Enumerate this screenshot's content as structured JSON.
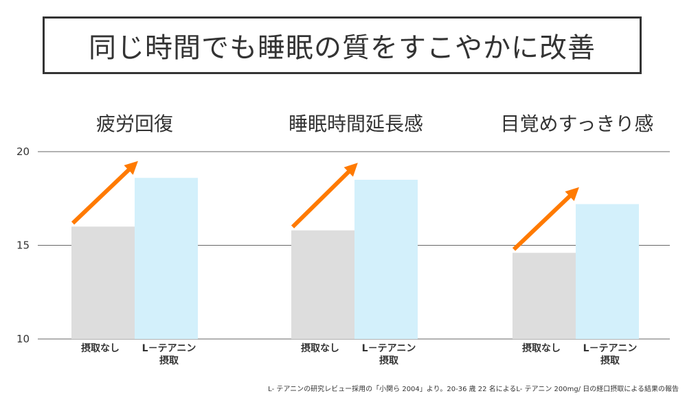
{
  "title": "同じ時間でも睡眠の質をすこやかに改善",
  "chart_data": {
    "type": "bar",
    "ylim": [
      10,
      20
    ],
    "yticks": [
      10,
      15,
      20
    ],
    "grid": true,
    "categories": [
      "疲労回復",
      "睡眠時間延長感",
      "目覚めすっきり感"
    ],
    "bar_labels": [
      [
        "摂取なし"
      ],
      [
        "L－テアニン",
        "摂取"
      ]
    ],
    "series": [
      {
        "values": [
          16.0,
          15.8,
          14.6
        ]
      },
      {
        "values": [
          18.6,
          18.5,
          17.2
        ]
      }
    ],
    "colors": {
      "none": "#dddddd",
      "theanine": "#d3f0fb",
      "arrow": "#ff7a00",
      "grid": "#666666"
    }
  },
  "footnote": "L- テアニンの研究レビュー採用の「小関ら 2004」より。20-36 歳 22 名によるL- テアニン 200mg/ 日の経口摂取による結果の報告"
}
